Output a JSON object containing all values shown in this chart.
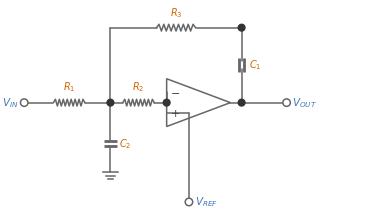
{
  "bg_color": "#ffffff",
  "line_color": "#666666",
  "label_color_blue": "#4477bb",
  "label_color_dark": "#cc6600",
  "fig_width": 3.81,
  "fig_height": 2.24,
  "dpi": 100,
  "xlim": [
    0,
    10
  ],
  "ylim": [
    0,
    5.9
  ]
}
